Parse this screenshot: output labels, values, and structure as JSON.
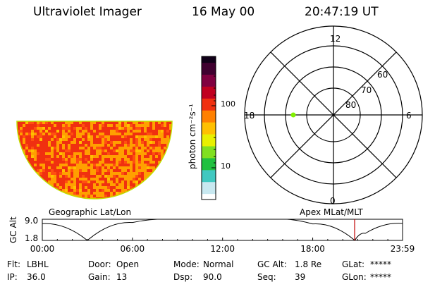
{
  "header": {
    "instrument": "Ultraviolet Imager",
    "date": "16 May 00",
    "time": "20:47:19 UT"
  },
  "colorbar": {
    "label": "photon cm⁻²s⁻¹",
    "scale": "log",
    "ticks": [
      "100",
      "10"
    ],
    "colors": [
      "#ffffff",
      "#c8e8f0",
      "#40c8c0",
      "#20c040",
      "#80e020",
      "#e8f000",
      "#ffc000",
      "#ff8000",
      "#f03010",
      "#c00020",
      "#800040",
      "#400030",
      "#100018"
    ]
  },
  "polar_plot": {
    "mlt_labels": {
      "top": "12",
      "left": "18",
      "right": "6",
      "bottom": "0"
    },
    "lat_labels": [
      "60",
      "70",
      "80"
    ],
    "marker_color": "#80f000"
  },
  "image_panel": {
    "dominant_color": "#ff8000",
    "edge_color": "#f03010",
    "outline_color": "#c0e000"
  },
  "coord_labels": {
    "left": "Geographic Lat/Lon",
    "right": "Apex MLat/MLT"
  },
  "altitude_panel": {
    "ylabel": "GC Alt",
    "yticks": [
      "9.0",
      "1.8"
    ],
    "xticks": [
      "00:00",
      "06:00",
      "12:00",
      "18:00",
      "23:59"
    ],
    "current_time_color": "#c00000"
  },
  "chart_data": {
    "type": "line",
    "title": "",
    "xlabel": "",
    "ylabel": "GC Alt",
    "x": [
      0,
      3,
      6,
      9,
      12,
      15,
      18,
      20.8,
      21.5,
      23.98
    ],
    "values": [
      7.5,
      1.8,
      7.9,
      9.0,
      9.3,
      9.1,
      7.4,
      1.8,
      4.2,
      7.6
    ],
    "xlim": [
      0,
      23.98
    ],
    "ylim": [
      1.8,
      9.0
    ],
    "current_time": 20.79
  },
  "info": {
    "row1": [
      {
        "label": "Flt:",
        "value": "LBHL"
      },
      {
        "label": "Door:",
        "value": "Open"
      },
      {
        "label": "Mode:",
        "value": "Normal"
      },
      {
        "label": "GC Alt:",
        "value": "1.8 Re"
      },
      {
        "label": "GLat:",
        "value": "*****"
      }
    ],
    "row2": [
      {
        "label": "IP:",
        "value": "36.0"
      },
      {
        "label": "Gain:",
        "value": "13"
      },
      {
        "label": "Dsp:",
        "value": "90.0"
      },
      {
        "label": "Seq:",
        "value": "39"
      },
      {
        "label": "GLon:",
        "value": "*****"
      }
    ]
  }
}
